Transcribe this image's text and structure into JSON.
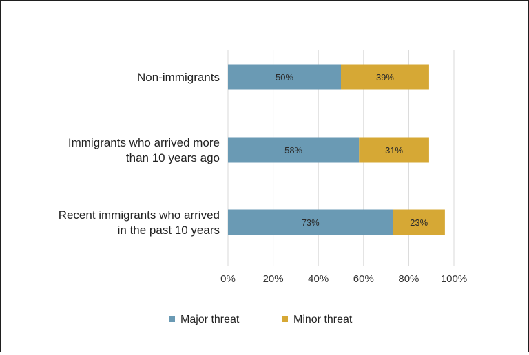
{
  "chart_data": {
    "type": "bar",
    "orientation": "horizontal",
    "stacked": true,
    "categories": [
      [
        "Non-immigrants"
      ],
      [
        "Immigrants who arrived more",
        "than 10 years ago"
      ],
      [
        "Recent immigrants who arrived",
        "in the past 10 years"
      ]
    ],
    "series": [
      {
        "name": "Major threat",
        "values": [
          50,
          58,
          73
        ],
        "labels": [
          "50%",
          "58%",
          "73%"
        ],
        "color": "#6a9ab4"
      },
      {
        "name": "Minor threat",
        "values": [
          39,
          31,
          23
        ],
        "labels": [
          "39%",
          "31%",
          "23%"
        ],
        "color": "#d6a835"
      }
    ],
    "xlim": [
      0,
      100
    ],
    "xticks": [
      0,
      20,
      40,
      60,
      80,
      100
    ],
    "xtick_labels": [
      "0%",
      "20%",
      "40%",
      "60%",
      "80%",
      "100%"
    ],
    "grid": "vertical",
    "grid_color": "#d9d9d9",
    "legend": "bottom-center"
  }
}
